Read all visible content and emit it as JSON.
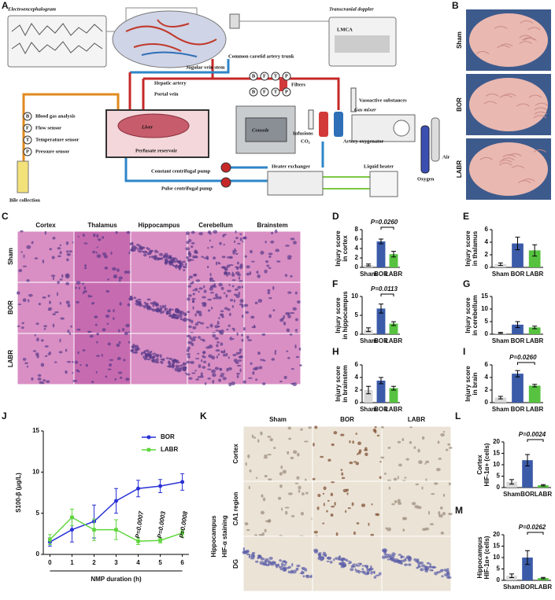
{
  "panel_labels": [
    "A",
    "B",
    "C",
    "D",
    "E",
    "F",
    "G",
    "H",
    "I",
    "J",
    "K",
    "L",
    "M"
  ],
  "diagram": {
    "eeg": "Electroencephalogram",
    "doppler": "Transcranial doppler",
    "doppler_screen": "LMCA",
    "carotid": "Common carotid artery trunk",
    "jugular": "Jugular vein stem",
    "hepatic_artery": "Hepatic artery",
    "portal_vein": "Portal vein",
    "filters": "Filters",
    "vasoactive": "Vasoactive substances",
    "infusions": "Infusions",
    "co2": "CO₂",
    "gas_mixer": "Gas mixer",
    "oxygenator": "Artery oxygenator",
    "air": "Air",
    "oxygen": "Oxygen",
    "console": "Console",
    "liver": "Liver",
    "reservoir": "Perfusate reservoir",
    "constant_pump": "Constant centrifugal pump",
    "pulse_pump": "Pulse centrifugal pump",
    "heater_exchanger": "Heater exchanger",
    "liquid_heater": "Liquid heater",
    "bile": "Bile collection",
    "sensors": [
      {
        "symbol": "B",
        "label": "Blood gas analysis"
      },
      {
        "symbol": "F",
        "label": "Flow sensor"
      },
      {
        "symbol": "T",
        "label": "Temperature sensor"
      },
      {
        "symbol": "P",
        "label": "Pressure sensor"
      }
    ]
  },
  "brain_photos": {
    "rows": [
      "Sham",
      "BOR",
      "LABR"
    ]
  },
  "he_staining": {
    "columns": [
      "Cortex",
      "Thalamus",
      "Hippocampus",
      "Cerebellum",
      "Brainstem"
    ],
    "rows": [
      "Sham",
      "BOR",
      "LABR"
    ]
  },
  "hif_staining": {
    "columns": [
      "Sham",
      "BOR",
      "LABR"
    ],
    "rows": [
      "Cortex",
      "CA1 region",
      "DG"
    ],
    "group": "Hippocampus",
    "stain": "HIF-α staining"
  },
  "chart_data": [
    {
      "type": "bar",
      "ylabel": [
        "Injury score",
        "in cortex"
      ],
      "categories": [
        "Sham",
        "BOR",
        "LABR"
      ],
      "values": [
        0.5,
        5.5,
        2.8
      ],
      "errors": [
        0.2,
        0.5,
        0.6
      ],
      "colors": [
        "#d9d9d9",
        "#3b5ba9",
        "#56c23f"
      ],
      "ylim": [
        0,
        8
      ],
      "yticks": [
        0,
        2,
        4,
        6,
        8
      ],
      "annotation": "P=0.0260"
    },
    {
      "type": "bar",
      "ylabel": [
        "Injury score",
        "in thalamus"
      ],
      "categories": [
        "Sham",
        "BOR",
        "LABR"
      ],
      "values": [
        0.5,
        3.8,
        2.7
      ],
      "errors": [
        0.2,
        1.0,
        0.9
      ],
      "colors": [
        "#d9d9d9",
        "#3b5ba9",
        "#56c23f"
      ],
      "ylim": [
        0,
        6
      ],
      "yticks": [
        0,
        2,
        4,
        6
      ]
    },
    {
      "type": "bar",
      "ylabel": [
        "Injury score",
        "in hippocampus"
      ],
      "categories": [
        "Sham",
        "BOR",
        "LABR"
      ],
      "values": [
        1.2,
        6.8,
        2.8
      ],
      "errors": [
        0.5,
        1.2,
        0.5
      ],
      "colors": [
        "#d9d9d9",
        "#3b5ba9",
        "#56c23f"
      ],
      "ylim": [
        0,
        10
      ],
      "yticks": [
        0,
        5,
        10
      ],
      "annotation": "P=0.0113"
    },
    {
      "type": "bar",
      "ylabel": [
        "Injury score",
        "in cerebellum"
      ],
      "categories": [
        "Sham",
        "BOR",
        "LABR"
      ],
      "values": [
        0.5,
        3.8,
        2.7
      ],
      "errors": [
        0.2,
        1.2,
        0.5
      ],
      "colors": [
        "#d9d9d9",
        "#3b5ba9",
        "#56c23f"
      ],
      "ylim": [
        0,
        15
      ],
      "yticks": [
        0,
        5,
        10,
        15
      ]
    },
    {
      "type": "bar",
      "ylabel": [
        "Injury score",
        "in brainstem"
      ],
      "categories": [
        "Sham",
        "BOR",
        "LABR"
      ],
      "values": [
        2.0,
        3.5,
        2.3
      ],
      "errors": [
        0.6,
        0.5,
        0.3
      ],
      "colors": [
        "#d9d9d9",
        "#3b5ba9",
        "#56c23f"
      ],
      "ylim": [
        0,
        6
      ],
      "yticks": [
        0,
        2,
        4,
        6
      ]
    },
    {
      "type": "bar",
      "ylabel": [
        "Injury score",
        "in brain"
      ],
      "categories": [
        "Sham",
        "BOR",
        "LABR"
      ],
      "values": [
        0.8,
        4.6,
        2.7
      ],
      "errors": [
        0.2,
        0.5,
        0.2
      ],
      "colors": [
        "#d9d9d9",
        "#3b5ba9",
        "#56c23f"
      ],
      "ylim": [
        0,
        6
      ],
      "yticks": [
        0,
        2,
        4,
        6
      ],
      "annotation": "P=0.0260"
    },
    {
      "type": "line",
      "ylabel": "S100-β (μg/L)",
      "xlabel": "NMP duration (h)",
      "x": [
        0,
        1,
        2,
        3,
        4,
        5,
        6
      ],
      "xlim": [
        -0.3,
        6.3
      ],
      "xticks": [
        0,
        1,
        2,
        3,
        4,
        5,
        6
      ],
      "ylim": [
        0,
        15
      ],
      "yticks": [
        0,
        5,
        10,
        15
      ],
      "legend": "upper right",
      "series": [
        {
          "name": "BOR",
          "color": "#2a32d6",
          "values": [
            1.5,
            3.0,
            4.0,
            6.5,
            8.0,
            8.3,
            8.8
          ],
          "errors": [
            0.5,
            1.5,
            2.0,
            1.5,
            1.0,
            0.8,
            1.0
          ]
        },
        {
          "name": "LABR",
          "color": "#5fd63c",
          "values": [
            1.8,
            4.5,
            3.0,
            3.0,
            1.6,
            1.7,
            2.6
          ],
          "errors": [
            0.6,
            1.0,
            1.3,
            1.2,
            0.4,
            0.3,
            0.4
          ]
        }
      ],
      "annotations": [
        {
          "x": 4,
          "text": "P=0.0007"
        },
        {
          "x": 5,
          "text": "P=0.0003"
        },
        {
          "x": 6,
          "text": "P=0.0008"
        }
      ]
    },
    {
      "type": "bar",
      "ylabel": [
        "Cortex",
        "HIF-1α+ (cells)"
      ],
      "categories": [
        "Sham",
        "BOR",
        "LABR"
      ],
      "values": [
        2.5,
        12,
        1
      ],
      "errors": [
        1.0,
        2.5,
        0.3
      ],
      "colors": [
        "#d9d9d9",
        "#3b5ba9",
        "#56c23f"
      ],
      "ylim": [
        0,
        20
      ],
      "yticks": [
        0,
        5,
        10,
        15,
        20
      ],
      "annotation": "P=0.0024"
    },
    {
      "type": "bar",
      "ylabel": [
        "Hippocampus",
        "HIF-1α+ (cells)"
      ],
      "categories": [
        "Sham",
        "BOR",
        "LABR"
      ],
      "values": [
        2,
        10,
        1
      ],
      "errors": [
        0.8,
        3.0,
        0.3
      ],
      "colors": [
        "#d9d9d9",
        "#3b5ba9",
        "#56c23f"
      ],
      "ylim": [
        0,
        20
      ],
      "yticks": [
        0,
        5,
        10,
        15,
        20
      ],
      "annotation": "P=0.0262"
    }
  ]
}
